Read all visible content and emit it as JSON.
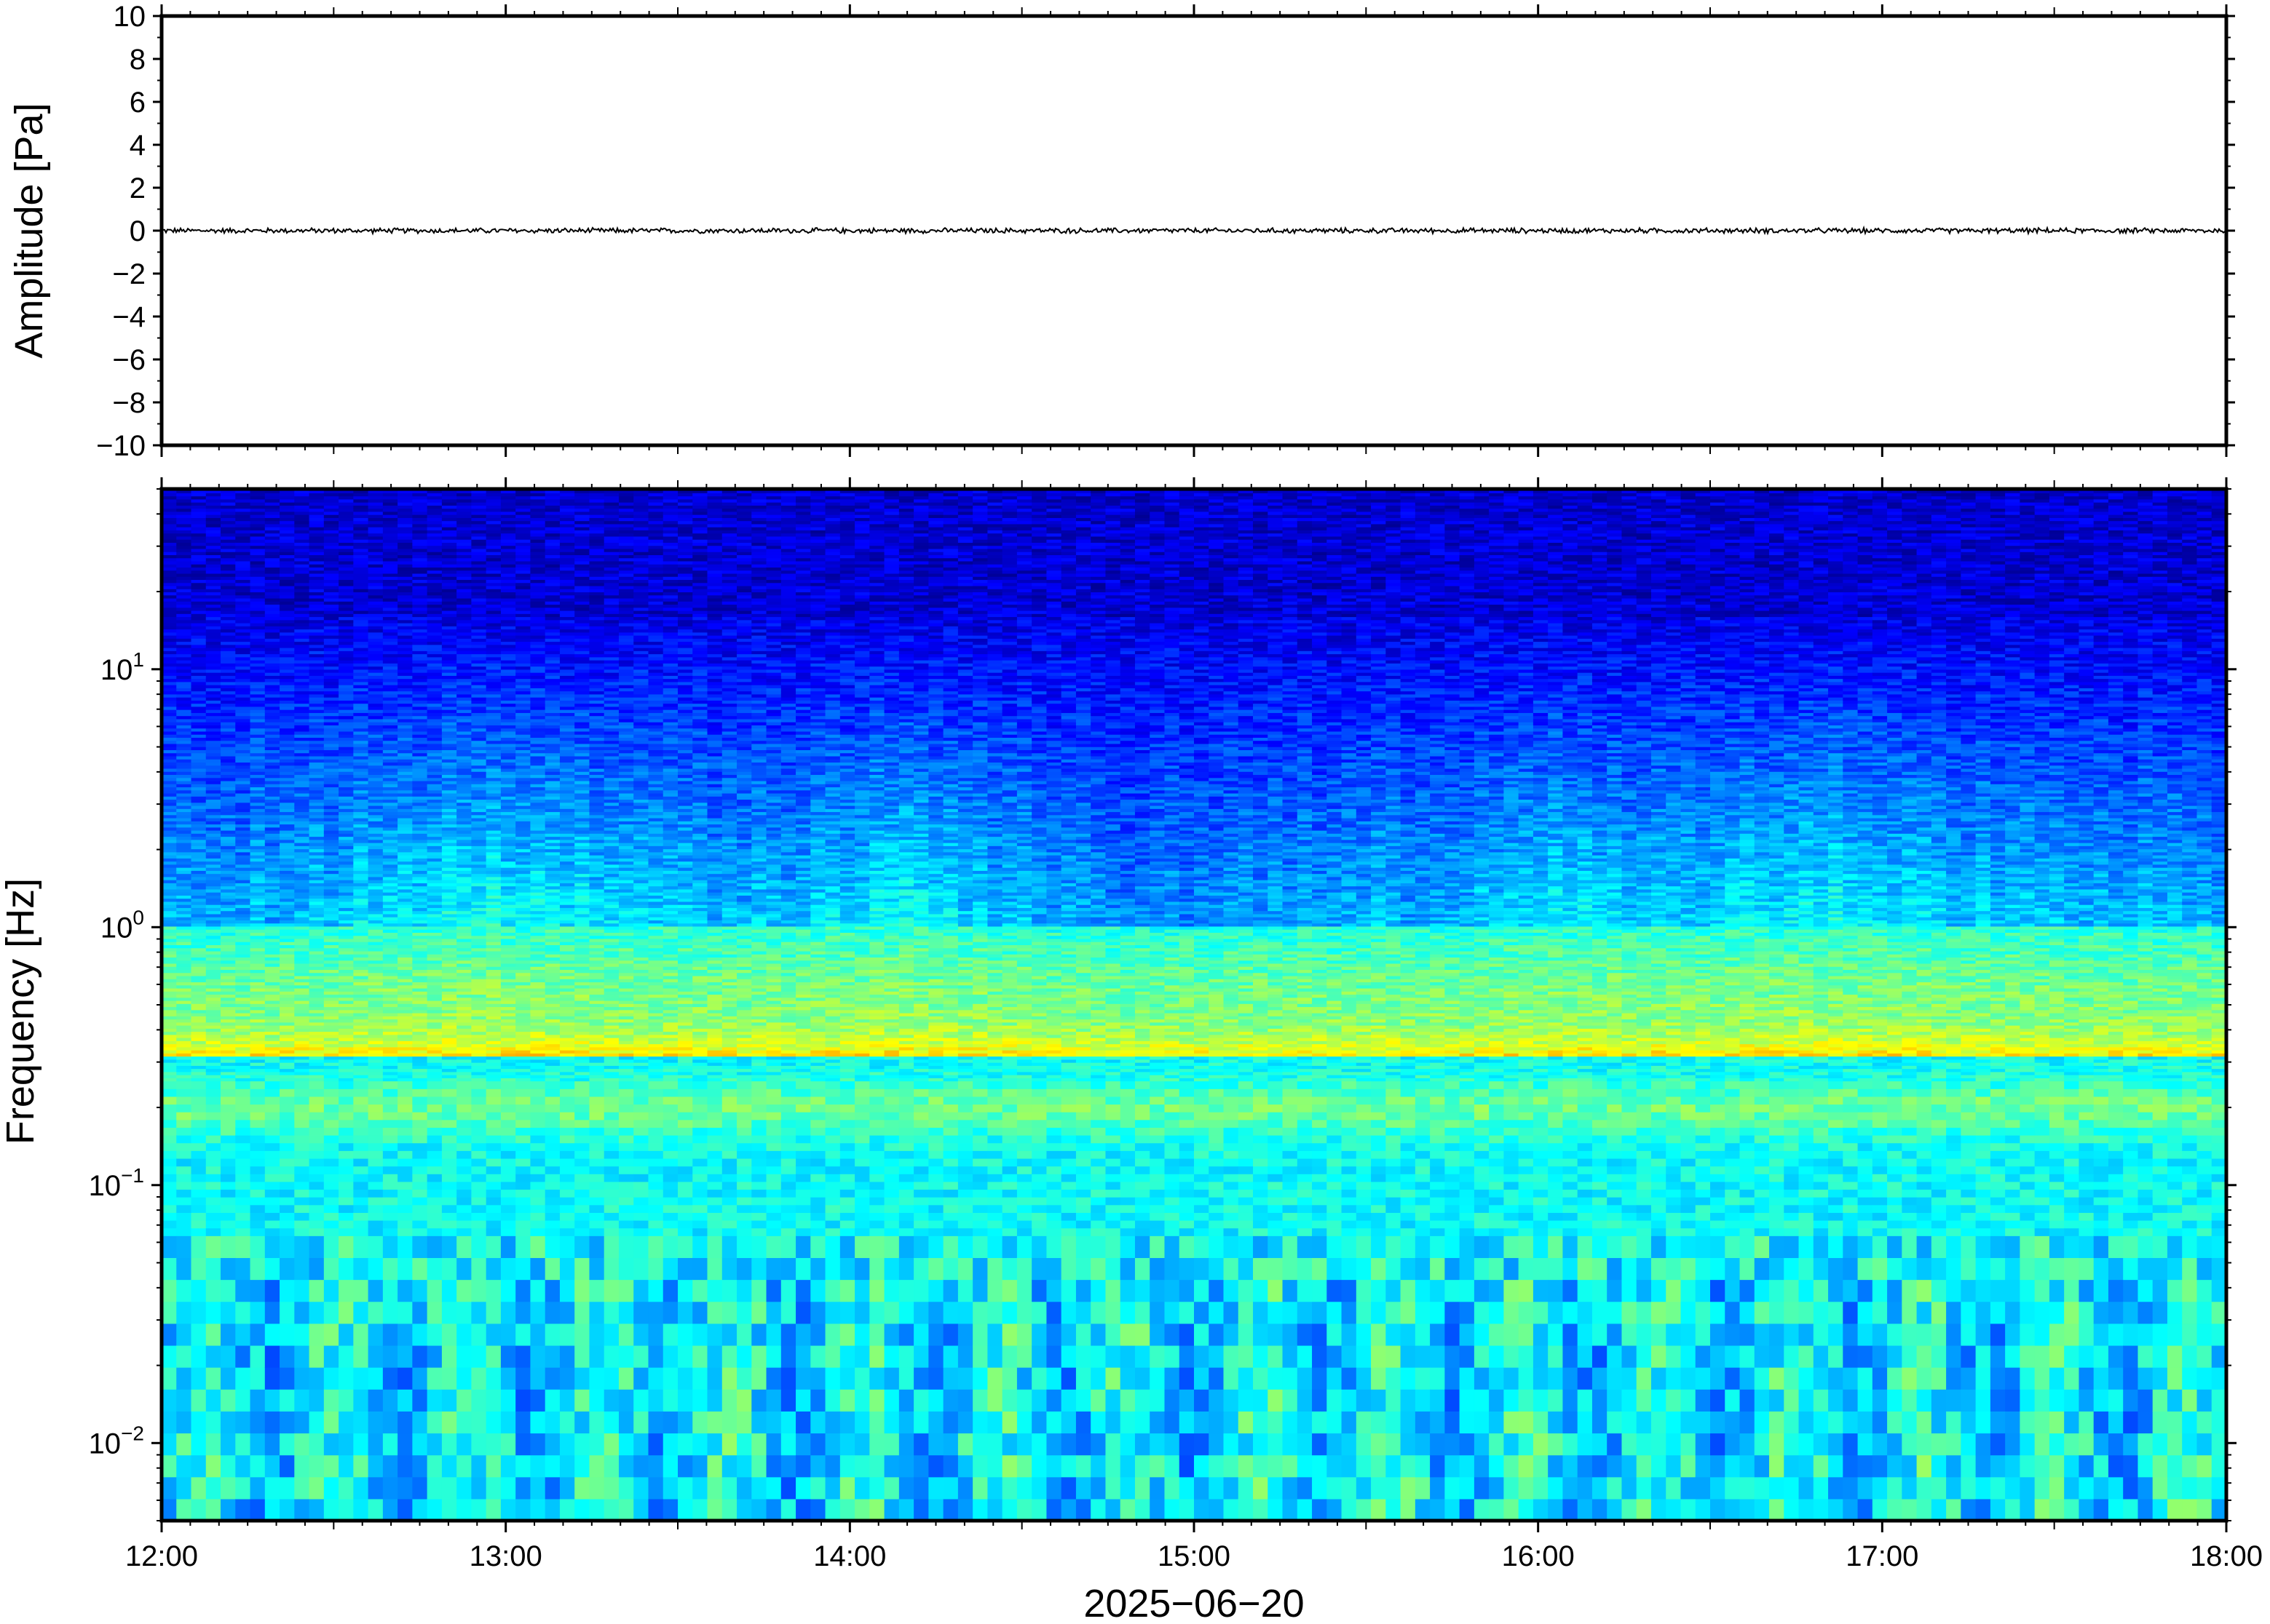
{
  "chart_data": [
    {
      "type": "line",
      "ylabel": "Amplitude [Pa]",
      "ylim": [
        -10,
        10
      ],
      "y_ticks": [
        {
          "value": 10,
          "label": "10"
        },
        {
          "value": 8,
          "label": "8"
        },
        {
          "value": 6,
          "label": "6"
        },
        {
          "value": 4,
          "label": "4"
        },
        {
          "value": 2,
          "label": "2"
        },
        {
          "value": 0,
          "label": "0"
        },
        {
          "value": -2,
          "label": "−2"
        },
        {
          "value": -4,
          "label": "−4"
        },
        {
          "value": -6,
          "label": "−6"
        },
        {
          "value": -8,
          "label": "−8"
        },
        {
          "value": -10,
          "label": "−10"
        }
      ],
      "xlim": [
        "2025-06-20 12:00",
        "2025-06-20 18:00"
      ],
      "series": [
        {
          "values_description_free": true,
          "approx_amplitude_pa": 0.1,
          "color": "#000000"
        }
      ],
      "grid": false
    },
    {
      "type": "heatmap",
      "ylabel": "Frequency [Hz]",
      "xlabel": "2025−06−20",
      "yscale": "log",
      "ylim": [
        0.005,
        50
      ],
      "y_ticks": [
        {
          "value": 10,
          "base": "10",
          "exp": "1"
        },
        {
          "value": 1,
          "base": "10",
          "exp": "0"
        },
        {
          "value": 0.1,
          "base": "10",
          "exp": "−1"
        },
        {
          "value": 0.01,
          "base": "10",
          "exp": "−2"
        }
      ],
      "xlim": [
        "2025-06-20 12:00",
        "2025-06-20 18:00"
      ],
      "x_ticks": [
        "12:00",
        "13:00",
        "14:00",
        "15:00",
        "16:00",
        "17:00",
        "18:00"
      ],
      "colormap": "jet",
      "colors": {
        "low": "#0c0875",
        "high": "#f8a05e"
      },
      "dominant_band_hz": [
        0.15,
        0.35
      ],
      "grid": false
    }
  ]
}
